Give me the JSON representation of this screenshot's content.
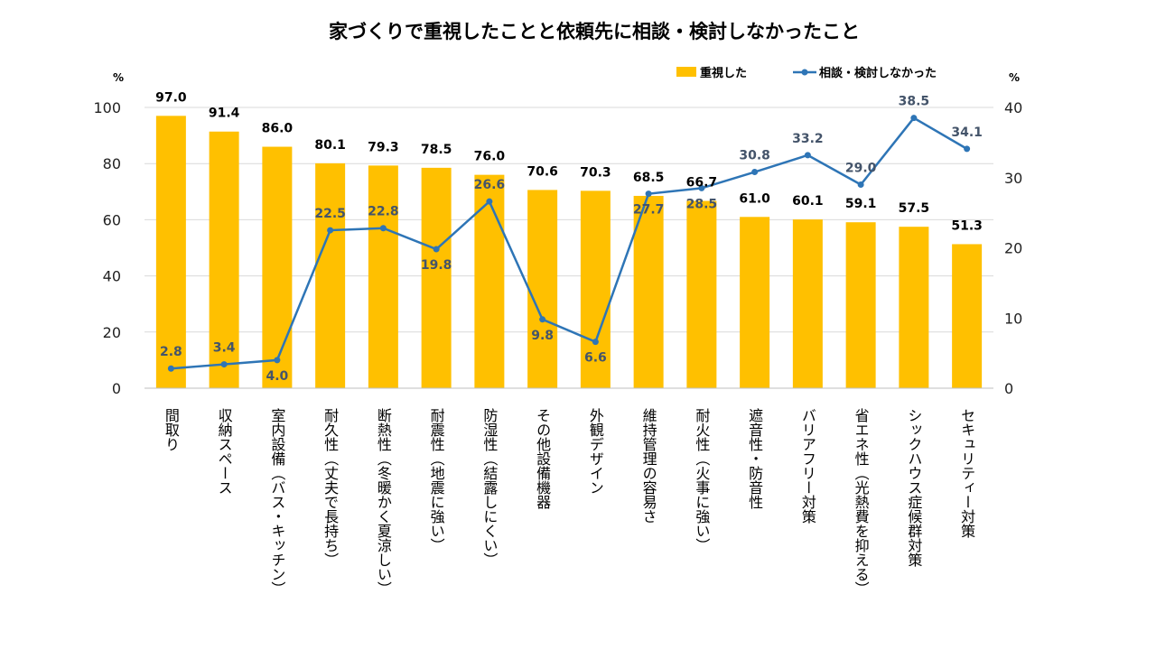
{
  "chart_data": {
    "type": "bar",
    "title": "家づくりで重視したことと依頼先に相談・検討しなかったこと",
    "y_unit_left": "%",
    "y_unit_right": "%",
    "ylim": [
      0,
      100
    ],
    "ylim_right": [
      0,
      40
    ],
    "yticks_left": [
      "0",
      "20",
      "40",
      "60",
      "80",
      "100"
    ],
    "yticks_right": [
      "0",
      "10",
      "20",
      "30",
      "40"
    ],
    "legend_position": "top-right",
    "grid": true,
    "categories": [
      "間取り",
      "収納スペース",
      "室内設備（バス・キッチン）",
      "耐久性（丈夫で長持ち）",
      "断熱性（冬暖かく夏涼しい）",
      "耐震性（地震に強い）",
      "防湿性（結露しにくい）",
      "その他設備機器",
      "外観デザイン",
      "維持管理の容易さ",
      "耐火性（火事に強い）",
      "遮音性・防音性",
      "バリアフリー対策",
      "省エネ性（光熱費を抑える）",
      "シックハウス症候群対策",
      "セキュリティー対策"
    ],
    "series": [
      {
        "name": "重視した",
        "type": "bar",
        "axis": "left",
        "color": "#FFC000",
        "values": [
          97.0,
          91.4,
          86.0,
          80.1,
          79.3,
          78.5,
          76.0,
          70.6,
          70.3,
          68.5,
          66.7,
          61.0,
          60.1,
          59.1,
          57.5,
          51.3
        ],
        "labels": [
          "97.0",
          "91.4",
          "86.0",
          "80.1",
          "79.3",
          "78.5",
          "76.0",
          "70.6",
          "70.3",
          "68.5",
          "66.7",
          "61.0",
          "60.1",
          "59.1",
          "57.5",
          "51.3"
        ]
      },
      {
        "name": "相談・検討しなかった",
        "type": "line",
        "axis": "right",
        "color": "#2E75B6",
        "values": [
          2.8,
          3.4,
          4.0,
          22.5,
          22.8,
          19.8,
          26.6,
          9.8,
          6.6,
          27.7,
          28.5,
          30.8,
          33.2,
          29.0,
          38.5,
          34.1
        ],
        "labels": [
          "2.8",
          "3.4",
          "4.0",
          "22.5",
          "22.8",
          "19.8",
          "26.6",
          "9.8",
          "6.6",
          "27.7",
          "28.5",
          "30.8",
          "33.2",
          "29.0",
          "38.5",
          "34.1"
        ]
      }
    ]
  }
}
